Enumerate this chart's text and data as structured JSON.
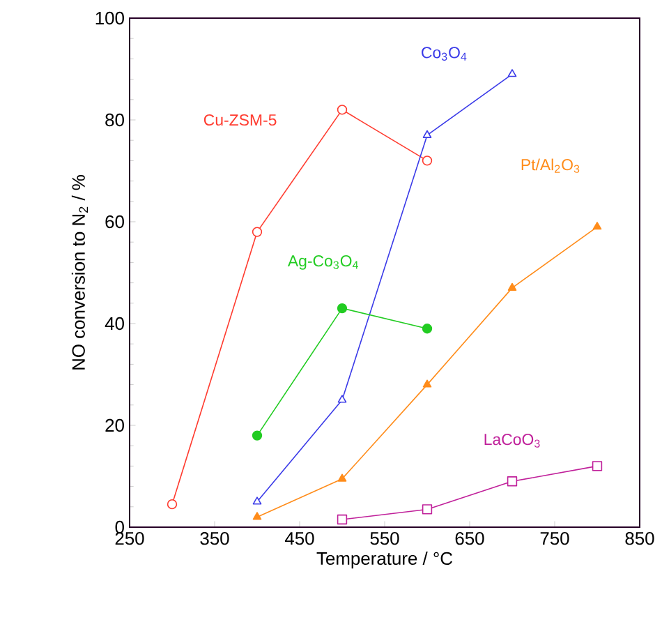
{
  "chart_data": {
    "type": "line",
    "xlabel": "Temperature / °C",
    "ylabel": "NO conversion to N$_{2}$ / %",
    "xlim": [
      250,
      850
    ],
    "xticks": [
      250,
      350,
      450,
      550,
      650,
      750,
      850
    ],
    "ylim": [
      0,
      100
    ],
    "yticks": [
      0,
      20,
      40,
      60,
      80,
      100
    ],
    "grid": false,
    "legend": false,
    "line_style": "solid",
    "series": [
      {
        "name": "Cu-ZSM-5",
        "color": "#ff3b2f",
        "marker": "circle",
        "x": [
          300,
          400,
          500,
          600
        ],
        "values": [
          4.5,
          58,
          82,
          72
        ]
      },
      {
        "name": "Co$_{3}$O$_{4}$",
        "color": "#3a3ae8",
        "marker": "triangle",
        "x": [
          400,
          500,
          600,
          700
        ],
        "values": [
          5,
          25,
          77,
          89
        ]
      },
      {
        "name": "Ag-Co$_{3}$O$_{4}$",
        "color": "#22cc22",
        "marker": "circle",
        "x": [
          400,
          500,
          600
        ],
        "values": [
          18,
          43,
          39
        ]
      },
      {
        "name": "Pt/Al$_{2}$O$_{3}$",
        "color": "#ff8c1a",
        "marker": "triangle",
        "x": [
          400,
          500,
          600,
          700,
          800
        ],
        "values": [
          2,
          9.5,
          28,
          47,
          59
        ]
      },
      {
        "name": "LaCoO$_{3}$",
        "color": "#c0209a",
        "marker": "square",
        "x": [
          500,
          600,
          700,
          800
        ],
        "values": [
          1.5,
          3.5,
          9,
          12
        ]
      }
    ]
  }
}
